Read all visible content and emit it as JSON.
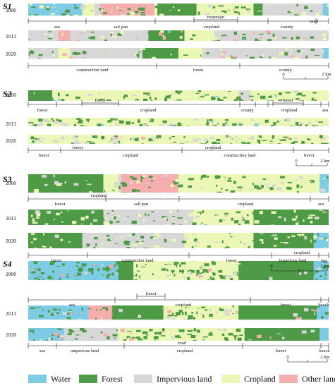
{
  "colors": {
    "water": "#7ecbe5",
    "forest": "#4f9a47",
    "impervious": "#d7d7d7",
    "cropland": "#eaf7b6",
    "other": "#f4aeae"
  },
  "sections": [
    {
      "label": "S1",
      "years": [
        "2000",
        "2013",
        "2020"
      ],
      "labels_a": [
        "sea",
        "salt pan",
        "cropland",
        "county",
        "sand"
      ],
      "inner_a": [
        "mountain"
      ],
      "labels_b": [
        "construction land",
        "forest",
        "county"
      ],
      "scale": [
        "0",
        "2 km"
      ]
    },
    {
      "label": "S2",
      "years": [
        "2000",
        "2013",
        "2020"
      ],
      "labels_a": [
        "forest",
        "cropland",
        "county",
        "cropland",
        "sea"
      ],
      "inner_a": [
        "forest",
        "forest"
      ],
      "labels_b": [
        "forest",
        "forest",
        "cropland",
        "cropland",
        "construction land",
        "forest"
      ],
      "scale": [
        "0",
        "2 km"
      ]
    },
    {
      "label": "S3",
      "years": [
        "2000",
        "2013",
        "2020"
      ],
      "labels_a": [
        "forest",
        "cropland",
        "salt pan",
        "cropland",
        "sea"
      ],
      "labels_b": [
        "forest",
        "construction land",
        "forest",
        "imperious land",
        "sea"
      ],
      "over_b": [
        "cropland"
      ],
      "scale": [
        "0",
        "2 km"
      ]
    },
    {
      "label": "S4",
      "years": [
        "2000",
        "2013",
        "2020"
      ],
      "labels_a": [
        "sea",
        "cropland",
        "forest",
        "beach"
      ],
      "inner_a": [
        "forest"
      ],
      "labels_b": [
        "sea",
        "omperious land",
        "road",
        "cropland",
        "forest",
        "beach"
      ],
      "scale": [
        "0",
        "2 km"
      ]
    }
  ],
  "legend": [
    {
      "key": "water",
      "label": "Water"
    },
    {
      "key": "forest",
      "label": "Forest"
    },
    {
      "key": "impervious",
      "label": "Impervious land"
    },
    {
      "key": "cropland",
      "label": "Cropland"
    },
    {
      "key": "other",
      "label": "Other land"
    }
  ]
}
